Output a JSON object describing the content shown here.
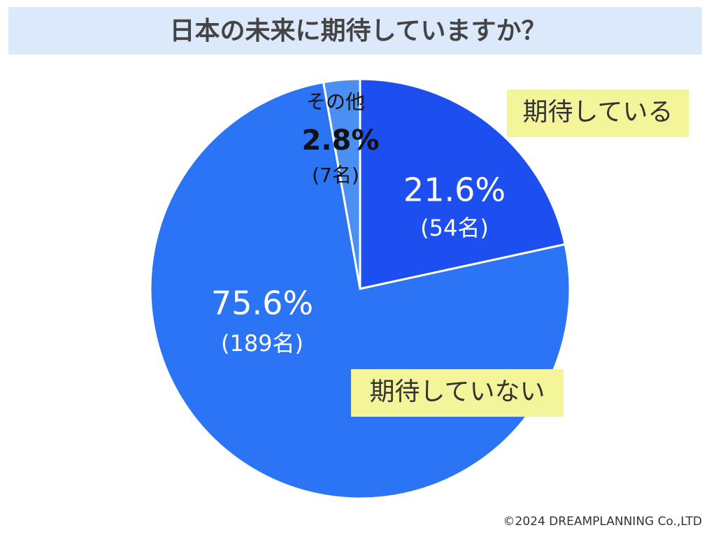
{
  "chart_data": {
    "type": "pie",
    "title": "日本の未来に期待していますか？",
    "categories": [
      "期待している",
      "期待していない",
      "その他"
    ],
    "values": [
      21.6,
      75.6,
      2.8
    ],
    "value_labels": [
      "21.6%",
      "75.6%",
      "2.8%"
    ],
    "counts": [
      54,
      189,
      7
    ],
    "count_labels": [
      "(54名)",
      "(189名)",
      "(7名)"
    ],
    "colors": [
      "#1d4ff0",
      "#2a74f5",
      "#4a8ff2"
    ],
    "copyright": "©2024 DREAMPLANNING Co.,LTD"
  }
}
